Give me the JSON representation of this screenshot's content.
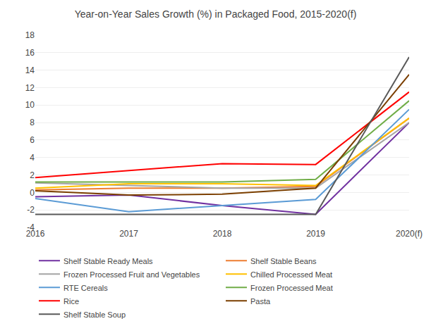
{
  "chart_data": {
    "type": "line",
    "title": "Year-on-Year Sales Growth (%) in Packaged Food, 2015-2020(f)",
    "categories": [
      "2016",
      "2017",
      "2018",
      "2019",
      "2020(f)"
    ],
    "series": [
      {
        "name": "Shelf Stable Ready Meals",
        "color": "#7030A0",
        "values": [
          -0.5,
          -0.3,
          -1.5,
          -2.5,
          8.0
        ]
      },
      {
        "name": "Shelf Stable Beans",
        "color": "#ED7D31",
        "values": [
          0.3,
          0.5,
          0.5,
          0.7,
          8.5
        ]
      },
      {
        "name": "Frozen Processed Fruit and Vegetables",
        "color": "#A5A5A5",
        "values": [
          1.1,
          0.8,
          0.5,
          0.5,
          8.0
        ]
      },
      {
        "name": "Chilled Processed Meat",
        "color": "#FFC000",
        "values": [
          0.5,
          1.0,
          1.0,
          0.8,
          8.5
        ]
      },
      {
        "name": "RTE Cereals",
        "color": "#5B9BD5",
        "values": [
          -0.7,
          -2.2,
          -1.5,
          -0.8,
          9.5
        ]
      },
      {
        "name": "Frozen Processed Meat",
        "color": "#70AD47",
        "values": [
          1.2,
          1.2,
          1.2,
          1.5,
          10.5
        ]
      },
      {
        "name": "Rice",
        "color": "#FF0000",
        "values": [
          1.7,
          2.5,
          3.3,
          3.2,
          11.5
        ]
      },
      {
        "name": "Pasta",
        "color": "#7B3F00",
        "values": [
          0.2,
          -0.3,
          -0.2,
          0.5,
          13.5
        ]
      },
      {
        "name": "Shelf Stable Soup",
        "color": "#595959",
        "values": [
          -2.5,
          -2.5,
          -2.5,
          -2.5,
          15.5
        ]
      }
    ],
    "ylim": [
      -4,
      18
    ],
    "yticks": [
      -4,
      -2,
      0,
      2,
      4,
      6,
      8,
      10,
      12,
      14,
      16,
      18
    ],
    "grid": true,
    "legend": "bottom"
  }
}
